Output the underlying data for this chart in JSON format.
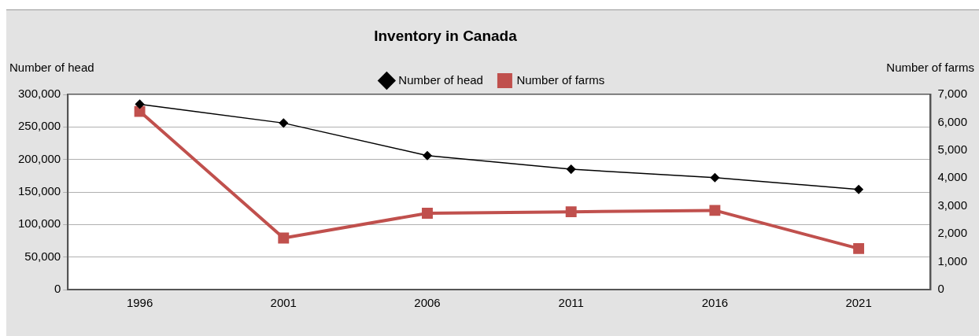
{
  "chart_data": {
    "type": "line",
    "title": "Inventory in Canada",
    "ylabel": "Number of head",
    "y2label": "Number of farms",
    "categories": [
      "1996",
      "2001",
      "2006",
      "2011",
      "2016",
      "2021"
    ],
    "series": [
      {
        "name": "Number of head",
        "color": "#000000",
        "values": [
          285000,
          256000,
          206000,
          185000,
          172000,
          154000
        ],
        "marker": "diamond"
      },
      {
        "name": "Number of farms",
        "color": "#c0504d",
        "values": [
          6390,
          1850,
          2740,
          2790,
          2840,
          1470
        ],
        "axis": "y2",
        "marker": "square"
      }
    ],
    "ylim": [
      0,
      300000
    ],
    "yticks": [
      0,
      {
        "value": 50000,
        "label": "50,000"
      },
      {
        "value": 100000,
        "label": "100,000"
      },
      {
        "value": 150000,
        "label": "150,000"
      },
      {
        "value": 200000,
        "label": "200,000"
      },
      {
        "value": 250000,
        "label": "250,000"
      },
      {
        "value": 300000,
        "label": "300,000"
      }
    ],
    "y2lim": [
      0,
      7000
    ],
    "y2ticks": [
      0,
      {
        "value": 1000,
        "label": "1,000"
      },
      {
        "value": 2000,
        "label": "2,000"
      },
      {
        "value": 3000,
        "label": "3,000"
      },
      {
        "value": 4000,
        "label": "4,000"
      },
      {
        "value": 5000,
        "label": "5,000"
      },
      {
        "value": 6000,
        "label": "6,000"
      },
      {
        "value": 7000,
        "label": "7,000"
      }
    ],
    "grid": "y",
    "legend": "top"
  }
}
